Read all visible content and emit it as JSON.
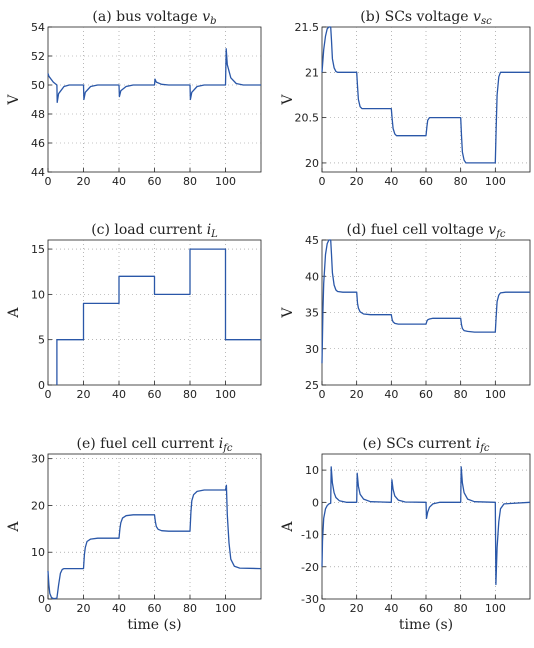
{
  "chart_data": [
    {
      "type": "line",
      "title": "(a) bus voltage v_b",
      "title_parts": [
        "(a) bus voltage ",
        "v",
        "b"
      ],
      "ylabel": "V",
      "xlabel": "",
      "xlim": [
        0,
        120
      ],
      "ylim": [
        44,
        54
      ],
      "xticks": [
        0,
        20,
        40,
        60,
        80,
        100
      ],
      "yticks": [
        44,
        46,
        48,
        50,
        52,
        54
      ],
      "grid": true,
      "series": [
        {
          "x": [
            0,
            0.5,
            3,
            5,
            5.2,
            6,
            9,
            12,
            20,
            20.2,
            21,
            24,
            28,
            40,
            40.2,
            41,
            44,
            48,
            60,
            60.3,
            61,
            64,
            68,
            80,
            80.2,
            81,
            84,
            88,
            100,
            100.4,
            101,
            103,
            106,
            110,
            120
          ],
          "y": [
            50.8,
            50.6,
            50.2,
            50,
            48.8,
            49.4,
            49.9,
            50,
            50,
            49.0,
            49.5,
            49.9,
            50,
            50,
            49.2,
            49.6,
            49.9,
            50,
            50,
            50.4,
            50.2,
            50.05,
            50,
            50,
            49.0,
            49.5,
            49.9,
            50,
            50,
            52.5,
            51.4,
            50.5,
            50.1,
            50,
            50
          ]
        }
      ]
    },
    {
      "type": "line",
      "title": "(b) SCs voltage v_sc",
      "title_parts": [
        "(b) SCs voltage ",
        "v",
        "sc"
      ],
      "ylabel": "V",
      "xlabel": "",
      "xlim": [
        0,
        120
      ],
      "ylim": [
        19.9,
        21.5
      ],
      "xticks": [
        0,
        20,
        40,
        60,
        80,
        100
      ],
      "yticks": [
        20,
        20.5,
        21,
        21.5
      ],
      "grid": true,
      "series": [
        {
          "x": [
            0,
            1,
            2,
            3,
            4,
            5,
            5.5,
            6,
            7,
            8,
            9,
            20,
            20.5,
            21,
            22,
            23,
            40,
            40.5,
            41,
            42,
            43,
            60,
            60.5,
            61,
            62,
            63,
            80,
            80.5,
            81,
            82,
            83,
            100,
            100.5,
            101,
            102,
            103,
            120
          ],
          "y": [
            21.0,
            21.25,
            21.4,
            21.48,
            21.5,
            21.5,
            21.35,
            21.15,
            21.05,
            21.01,
            21.0,
            21.0,
            20.85,
            20.7,
            20.62,
            20.6,
            20.6,
            20.48,
            20.38,
            20.32,
            20.3,
            20.3,
            20.4,
            20.47,
            20.5,
            20.5,
            20.5,
            20.3,
            20.12,
            20.03,
            20.0,
            20.0,
            20.4,
            20.75,
            20.95,
            21.0,
            21.0
          ]
        }
      ]
    },
    {
      "type": "line",
      "title": "(c) load current i_L",
      "title_parts": [
        "(c) load current ",
        "i",
        "L"
      ],
      "ylabel": "A",
      "xlabel": "",
      "xlim": [
        0,
        120
      ],
      "ylim": [
        0,
        16
      ],
      "xticks": [
        0,
        20,
        40,
        60,
        80,
        100
      ],
      "yticks": [
        0,
        5,
        10,
        15
      ],
      "grid": true,
      "series": [
        {
          "x": [
            5,
            5,
            20,
            20,
            40,
            40,
            60,
            60,
            80,
            80,
            100,
            100,
            120
          ],
          "y": [
            0,
            5,
            5,
            9,
            9,
            12,
            12,
            10,
            10,
            15,
            15,
            5,
            5
          ]
        }
      ]
    },
    {
      "type": "line",
      "title": "(d) fuel cell voltage v_fc",
      "title_parts": [
        "(d) fuel cell voltage ",
        "v",
        "fc"
      ],
      "ylabel": "V",
      "xlabel": "",
      "xlim": [
        0,
        120
      ],
      "ylim": [
        25,
        45
      ],
      "xticks": [
        0,
        20,
        40,
        60,
        80,
        100
      ],
      "yticks": [
        25,
        30,
        35,
        40,
        45
      ],
      "grid": true,
      "series": [
        {
          "x": [
            0,
            0.5,
            1,
            2,
            3,
            4,
            5,
            5.5,
            6,
            7,
            8,
            9,
            12,
            20,
            20.5,
            21,
            22,
            24,
            28,
            40,
            40.5,
            41,
            42,
            44,
            48,
            60,
            60.5,
            61,
            62,
            64,
            68,
            80,
            80.5,
            81,
            82,
            84,
            88,
            100,
            100.5,
            101,
            102,
            103,
            106,
            120
          ],
          "y": [
            28,
            35,
            39,
            43,
            44.5,
            45,
            45,
            43,
            40.5,
            38.8,
            38.1,
            37.9,
            37.8,
            37.8,
            36.3,
            35.6,
            35.1,
            34.8,
            34.7,
            34.7,
            34.0,
            33.7,
            33.5,
            33.4,
            33.4,
            33.4,
            33.8,
            34.0,
            34.1,
            34.2,
            34.2,
            34.2,
            33.3,
            32.8,
            32.5,
            32.4,
            32.3,
            32.3,
            34.5,
            36.5,
            37.4,
            37.7,
            37.8,
            37.8
          ]
        }
      ]
    },
    {
      "type": "line",
      "title": "(e) fuel cell current i_fc",
      "title_parts": [
        "(e) fuel cell current ",
        "i",
        "fc"
      ],
      "ylabel": "A",
      "xlabel": "time (s)",
      "xlim": [
        0,
        120
      ],
      "ylim": [
        0,
        31
      ],
      "xticks": [
        0,
        20,
        40,
        60,
        80,
        100
      ],
      "yticks": [
        0,
        10,
        20,
        30
      ],
      "grid": true,
      "series": [
        {
          "x": [
            0,
            0.5,
            1,
            2,
            3,
            4,
            5,
            6,
            7,
            8,
            9,
            12,
            20,
            20.5,
            21,
            22,
            24,
            28,
            40,
            40.5,
            41,
            42,
            44,
            48,
            60,
            60.5,
            61,
            62,
            64,
            68,
            80,
            80.5,
            81,
            82,
            84,
            88,
            100,
            100.5,
            101,
            102,
            103,
            105,
            108,
            120
          ],
          "y": [
            6,
            3,
            1.2,
            0.3,
            0.1,
            0.1,
            0.2,
            3,
            5.5,
            6.3,
            6.5,
            6.5,
            6.5,
            9.5,
            11,
            12.3,
            12.8,
            13,
            13,
            15,
            16.3,
            17.3,
            17.8,
            18,
            18,
            16.5,
            15.5,
            14.9,
            14.6,
            14.5,
            14.5,
            18.5,
            21,
            22.3,
            23,
            23.3,
            23.3,
            24.3,
            18,
            12,
            8.5,
            7,
            6.6,
            6.5
          ]
        }
      ]
    },
    {
      "type": "line",
      "title": "(e) SCs current i_fc",
      "title_parts": [
        "(e) SCs current ",
        "i",
        "fc"
      ],
      "ylabel": "A",
      "xlabel": "time (s)",
      "xlim": [
        0,
        120
      ],
      "ylim": [
        -30,
        15
      ],
      "xticks": [
        0,
        20,
        40,
        60,
        80,
        100
      ],
      "yticks": [
        -30,
        -20,
        -10,
        0,
        10
      ],
      "grid": true,
      "series": [
        {
          "x": [
            0,
            0.3,
            1,
            2,
            3,
            4,
            5,
            5.3,
            6,
            7,
            8,
            10,
            14,
            20,
            20.3,
            21,
            22,
            24,
            28,
            40,
            40.3,
            41,
            42,
            44,
            48,
            60,
            60.3,
            61,
            62,
            64,
            68,
            80,
            80.3,
            81,
            82,
            84,
            88,
            100,
            100.3,
            101,
            102,
            103,
            105,
            120
          ],
          "y": [
            -20,
            -12,
            -5,
            -2,
            -1,
            -0.5,
            -0.3,
            11,
            6,
            3,
            1.5,
            0.5,
            0,
            0,
            9,
            5,
            2.5,
            1,
            0.2,
            0,
            7,
            4,
            2,
            0.7,
            0.1,
            0,
            -5,
            -3,
            -1.5,
            -0.5,
            0,
            0,
            11,
            6,
            3,
            1,
            0.2,
            0,
            -25.5,
            -14,
            -6,
            -2,
            -0.5,
            0
          ]
        }
      ]
    }
  ]
}
